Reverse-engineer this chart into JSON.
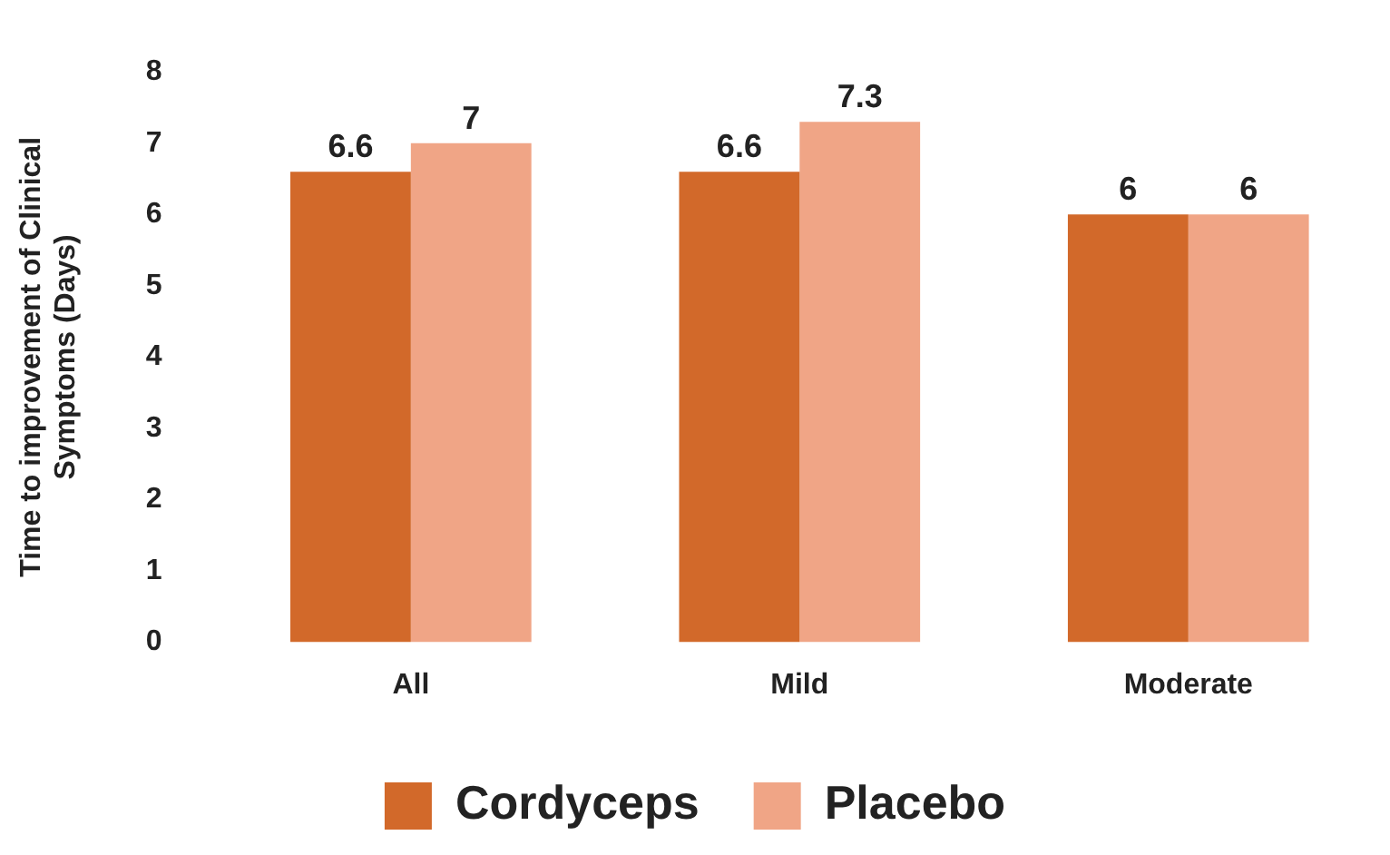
{
  "chart_data": {
    "type": "bar",
    "ylabel": "Time to improvement of Clinical Symptoms (Days)",
    "categories": [
      "All",
      "Mild",
      "Moderate"
    ],
    "series": [
      {
        "name": "Cordyceps",
        "color": "#d2692a",
        "values": [
          6.6,
          6.6,
          6
        ]
      },
      {
        "name": "Placebo",
        "color": "#f0a586",
        "values": [
          7,
          7.3,
          6
        ]
      }
    ],
    "ylim": [
      0,
      8
    ],
    "yticks": [
      0,
      1,
      2,
      3,
      4,
      5,
      6,
      7,
      8
    ],
    "grid": false,
    "legend": "bottom",
    "data_labels": true
  }
}
